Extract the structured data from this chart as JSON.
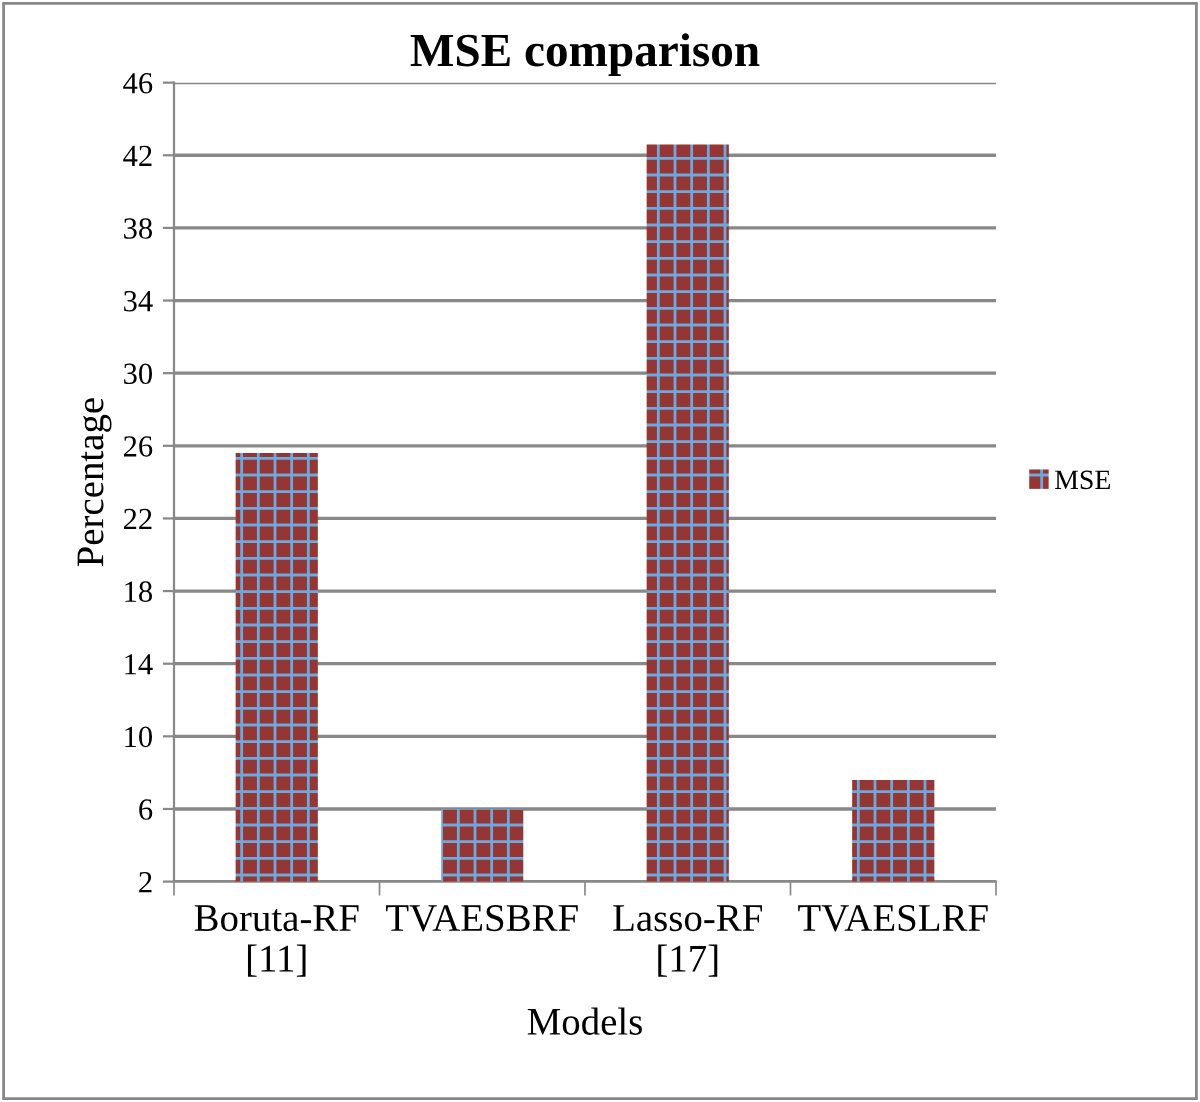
{
  "chart_data": {
    "type": "bar",
    "title": "MSE comparison",
    "xlabel": "Models",
    "ylabel": "Percentage",
    "categories": [
      "Boruta-RF\n[11]",
      "TVAESBRF",
      "Lasso-RF\n[17]",
      "TVAESLRF"
    ],
    "series": [
      {
        "name": "MSE",
        "color": "#943634",
        "values": [
          25.6,
          6.0,
          42.6,
          7.6
        ]
      }
    ],
    "ylim": [
      2,
      46
    ],
    "yticks": [
      2,
      6,
      10,
      14,
      18,
      22,
      26,
      30,
      34,
      38,
      42,
      46
    ],
    "grid": "y",
    "legend": "right"
  }
}
